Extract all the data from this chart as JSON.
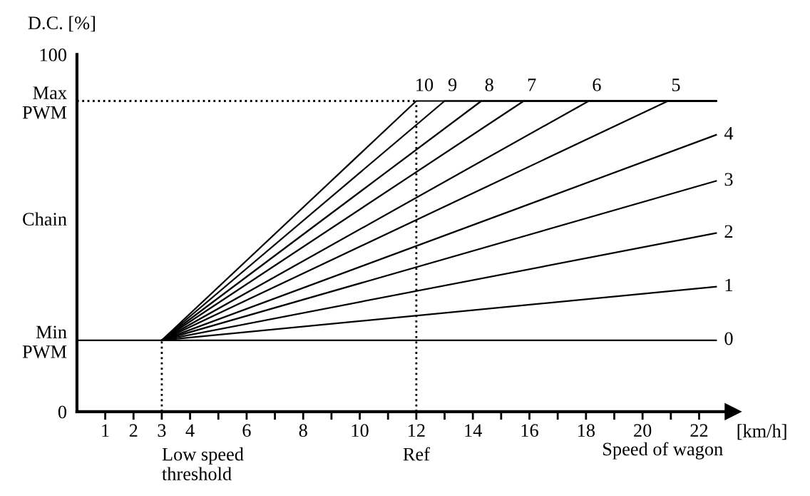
{
  "chart_data": {
    "type": "line",
    "ylabel": "D.C. [%]",
    "xlabel": "[km/h]",
    "xlim": [
      0,
      23.2
    ],
    "ylim": [
      0,
      100
    ],
    "xticks": [
      {
        "value": 1,
        "label": "1"
      },
      {
        "value": 2,
        "label": "2"
      },
      {
        "value": 3,
        "label": "3"
      },
      {
        "value": 4,
        "label": "4"
      },
      {
        "value": 5,
        "label": null
      },
      {
        "value": 6,
        "label": "6"
      },
      {
        "value": 7,
        "label": null
      },
      {
        "value": 8,
        "label": "8"
      },
      {
        "value": 9,
        "label": null
      },
      {
        "value": 10,
        "label": "10"
      },
      {
        "value": 11,
        "label": null
      },
      {
        "value": 12,
        "label": "12"
      },
      {
        "value": 13,
        "label": null
      },
      {
        "value": 14,
        "label": "14"
      },
      {
        "value": 15,
        "label": null
      },
      {
        "value": 16,
        "label": "16"
      },
      {
        "value": 17,
        "label": null
      },
      {
        "value": 18,
        "label": "18"
      },
      {
        "value": 19,
        "label": null
      },
      {
        "value": 20,
        "label": "20"
      },
      {
        "value": 21,
        "label": null
      },
      {
        "value": 22,
        "label": "22"
      }
    ],
    "yticks": [
      0,
      {
        "value": 20,
        "label": "Min\nPWM"
      },
      {
        "value": 54,
        "label": "Chain"
      },
      {
        "value": 87,
        "label": "Max\nPWM"
      },
      100
    ],
    "grid": false,
    "legend": false,
    "marker": "none",
    "line_style": "solid",
    "series": [
      {
        "name": "0",
        "color": "#000000",
        "x": [
          0,
          3,
          22.6
        ],
        "values": [
          20,
          20,
          20
        ]
      },
      {
        "name": "1",
        "color": "#000000",
        "x": [
          3,
          22.6
        ],
        "values": [
          20,
          35
        ]
      },
      {
        "name": "2",
        "color": "#000000",
        "x": [
          3,
          22.6
        ],
        "values": [
          20,
          50
        ]
      },
      {
        "name": "3",
        "color": "#000000",
        "x": [
          3,
          22.6
        ],
        "values": [
          20,
          64.6
        ]
      },
      {
        "name": "4",
        "color": "#000000",
        "x": [
          3,
          22.6
        ],
        "values": [
          20,
          77.5
        ]
      },
      {
        "name": "5",
        "color": "#000000",
        "x": [
          3,
          20.9,
          22.6
        ],
        "values": [
          20,
          87,
          87
        ]
      },
      {
        "name": "6",
        "color": "#000000",
        "x": [
          3,
          18.1,
          22.6
        ],
        "values": [
          20,
          87,
          87
        ]
      },
      {
        "name": "7",
        "color": "#000000",
        "x": [
          3,
          15.8,
          22.6
        ],
        "values": [
          20,
          87,
          87
        ]
      },
      {
        "name": "8",
        "color": "#000000",
        "x": [
          3,
          14.3,
          22.6
        ],
        "values": [
          20,
          87,
          87
        ]
      },
      {
        "name": "9",
        "color": "#000000",
        "x": [
          3,
          13,
          22.6
        ],
        "values": [
          20,
          87,
          87
        ]
      },
      {
        "name": "10",
        "color": "#000000",
        "x": [
          3,
          12,
          22.6
        ],
        "values": [
          20,
          87,
          87
        ]
      }
    ],
    "ref_lines": [
      {
        "axis": "x",
        "value": 3,
        "label": "Low speed\nthreshold",
        "line_style": "dotted",
        "color": "#000000"
      },
      {
        "axis": "x",
        "value": 12,
        "label": "Ref",
        "line_style": "dotted",
        "color": "#000000"
      },
      {
        "axis": "y",
        "value": 87,
        "label": null,
        "line_style": "dotted",
        "color": "#000000"
      }
    ],
    "annotations": [
      "Speed of wagon"
    ]
  }
}
